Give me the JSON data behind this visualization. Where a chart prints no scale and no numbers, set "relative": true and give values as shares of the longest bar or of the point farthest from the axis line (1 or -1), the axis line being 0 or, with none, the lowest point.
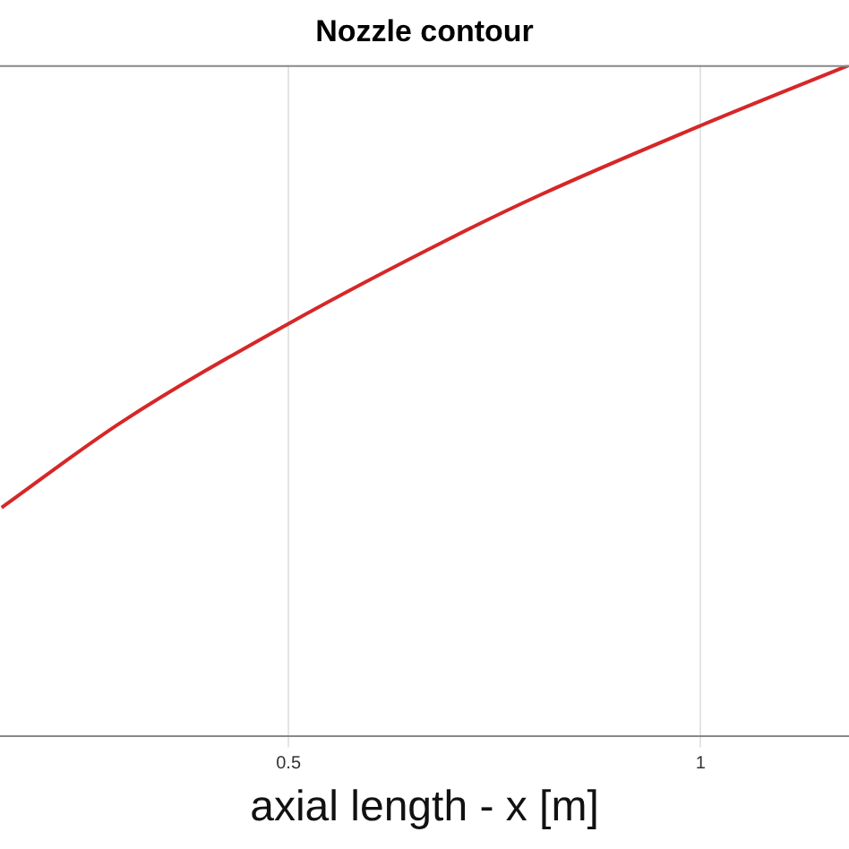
{
  "chart_data": {
    "type": "line",
    "title": "Nozzle contour",
    "xlabel": "axial length - x [m]",
    "relative": true,
    "x": [
      0.152,
      0.297,
      0.5,
      0.696,
      0.804,
      1.0,
      1.18
    ],
    "series": [
      {
        "color": "#d62728",
        "values": [
          0.341,
          0.468,
          0.615,
          0.742,
          0.806,
          0.91,
          1.0
        ]
      }
    ],
    "xlim": [
      0.15,
      1.18
    ],
    "xticks": [
      0.5,
      1
    ],
    "grid": "x",
    "legend": false,
    "marker": "none",
    "line_style": "solid"
  }
}
